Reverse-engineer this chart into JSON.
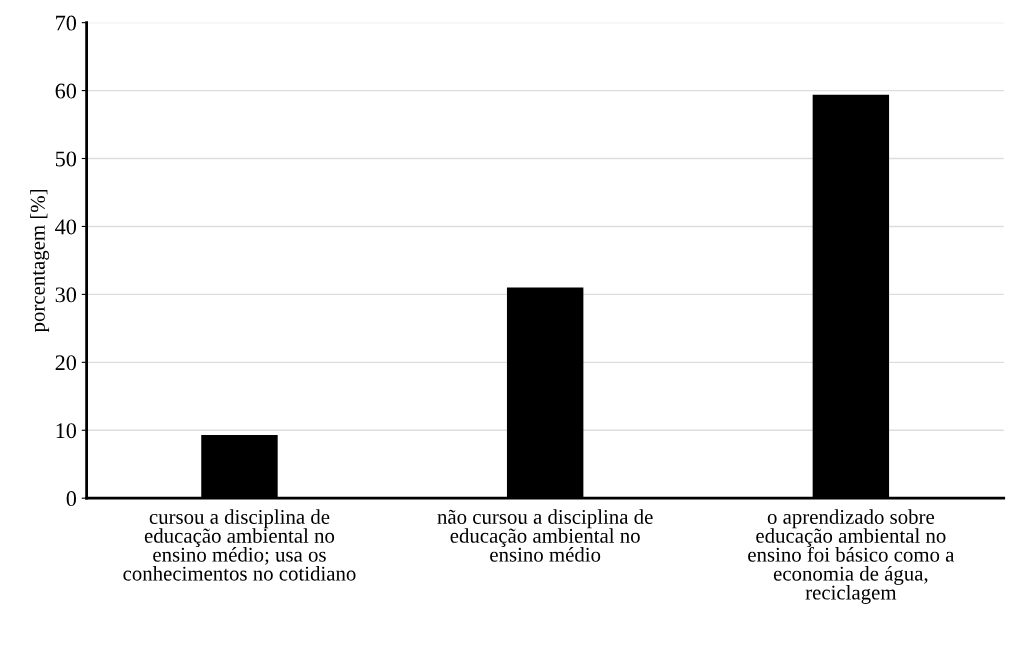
{
  "chart_data": {
    "type": "bar",
    "ylabel": "porcentagem [%]",
    "categories": [
      "cursou a disciplina de\neducação ambiental no\nensino médio; usa os\nconhecimentos no cotidiano",
      "não cursou a disciplina de\neducação ambiental no\nensino médio",
      "o aprendizado sobre\neducação ambiental no\nensino foi básico como a\neconomia de água,\nreciclagem"
    ],
    "values": [
      9.3,
      31.0,
      59.4
    ],
    "color": "#000000",
    "ylim": [
      0,
      70
    ],
    "yticks": [
      0,
      10,
      20,
      30,
      40,
      50,
      60,
      70
    ],
    "grid": "y"
  }
}
